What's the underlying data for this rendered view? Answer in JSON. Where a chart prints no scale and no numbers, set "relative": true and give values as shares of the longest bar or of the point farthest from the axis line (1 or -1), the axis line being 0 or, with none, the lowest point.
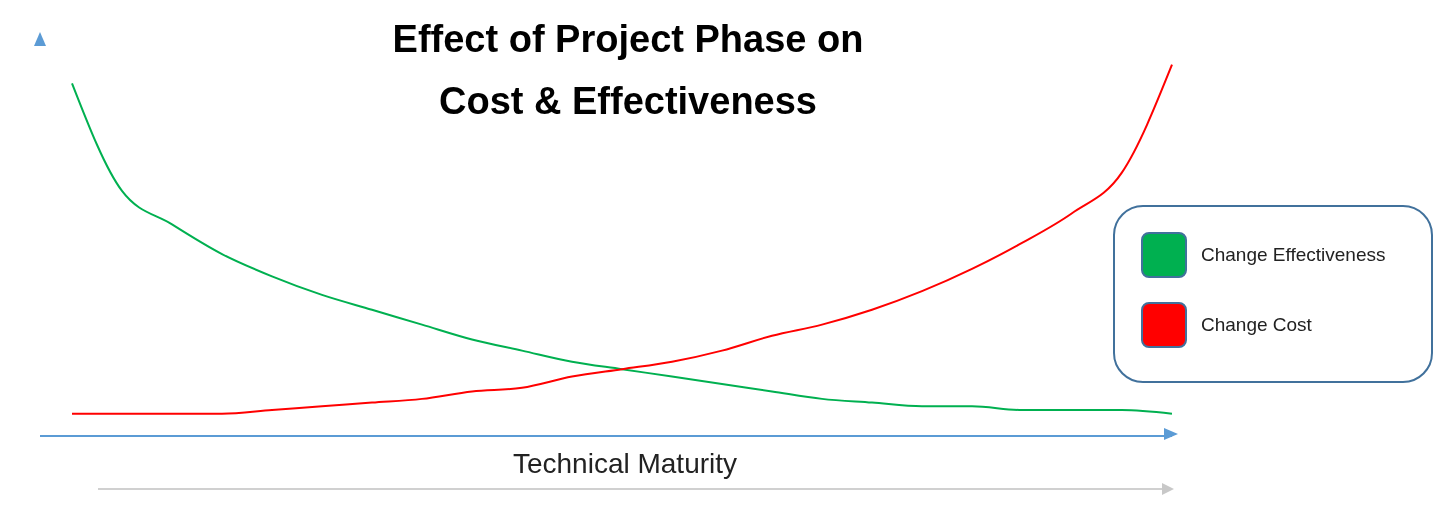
{
  "chart_data": {
    "type": "line",
    "title": "Effect of Project Phase on\nCost & Effectiveness",
    "xlabel": "Technical Maturity",
    "relative": true,
    "categories": [
      null,
      null,
      null,
      null,
      null,
      null,
      null,
      null,
      null,
      null,
      null,
      null,
      null,
      null,
      null,
      null,
      null,
      null,
      null,
      null,
      null,
      null,
      null
    ],
    "series": [
      {
        "name": "Change Effectiveness",
        "color": "#00b050",
        "values": [
          0.95,
          0.66,
          0.57,
          0.49,
          0.43,
          0.38,
          0.34,
          0.3,
          0.26,
          0.23,
          0.2,
          0.18,
          0.16,
          0.14,
          0.12,
          0.1,
          0.09,
          0.08,
          0.08,
          0.07,
          0.07,
          0.07,
          0.06
        ]
      },
      {
        "name": "Change Cost",
        "color": "#ff0000",
        "values": [
          0.06,
          0.06,
          0.06,
          0.06,
          0.07,
          0.08,
          0.09,
          0.1,
          0.12,
          0.13,
          0.16,
          0.18,
          0.2,
          0.23,
          0.27,
          0.3,
          0.34,
          0.39,
          0.45,
          0.52,
          0.6,
          0.71,
          1
        ]
      }
    ],
    "legend": "right",
    "grid": false,
    "marker": "none",
    "line_style": "solid"
  }
}
